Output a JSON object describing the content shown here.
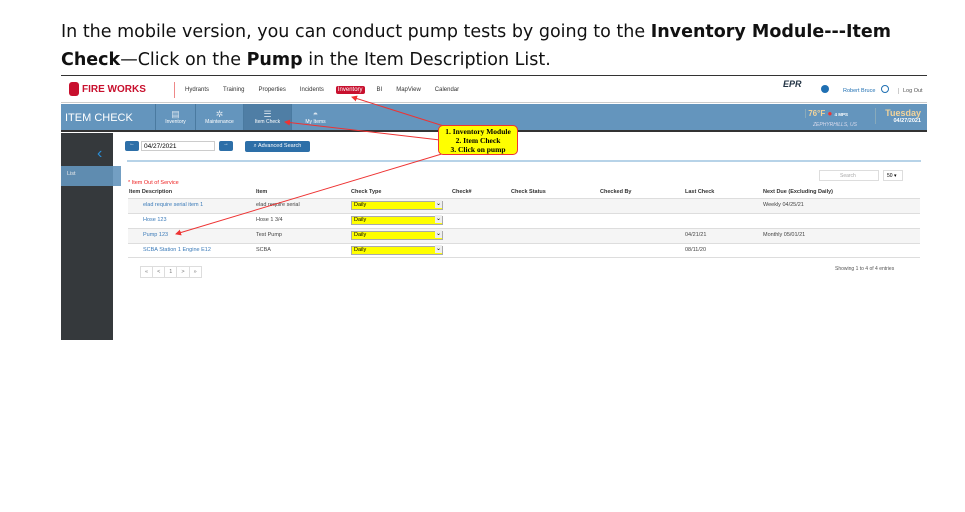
{
  "intro": {
    "t1": "In the mobile version, you can conduct pump tests by going to the ",
    "b1": "Inventory Module---Item Check",
    "t2": "—Click on the ",
    "b2": "Pump",
    "t3": " in the Item Description List."
  },
  "header": {
    "logo": "FIRE WORKS",
    "nav": [
      "Hydrants",
      "Training",
      "Properties",
      "Incidents",
      "Inventory",
      "BI",
      "MapView",
      "Calendar"
    ],
    "active_nav": "Inventory",
    "epr": "EPR",
    "user": "Robert Bruce",
    "logout": "Log Out"
  },
  "bar": {
    "title": "ITEM CHECK",
    "modules": [
      "Inventory",
      "Maintenance",
      "Item Check",
      "My Items"
    ],
    "temp": "76°F",
    "wind": "4 MPS",
    "city": "ZEPHYRHILLS, US",
    "day": "Tuesday",
    "date": "04/27/2021"
  },
  "sidebar": {
    "list": "List"
  },
  "toolbar": {
    "date": "04/27/2021",
    "advanced_search": "Advanced Search",
    "search_placeholder": "Search",
    "per_page": "50"
  },
  "legend": "* Item Out of Service",
  "table": {
    "headers": [
      "Item Description",
      "Item",
      "Check Type",
      "Check#",
      "Check Status",
      "Checked By",
      "Last Check",
      "Next Due (Excluding Daily)"
    ],
    "rows": [
      {
        "desc": "elad require serial item 1",
        "item": "elad require serial",
        "type": "Daily",
        "last": "",
        "next": "Weekly 04/25/21"
      },
      {
        "desc": "Hose 123",
        "item": "Hose 1 3/4",
        "type": "Daily",
        "last": "",
        "next": ""
      },
      {
        "desc": "Pump 123",
        "item": "Test Pump",
        "type": "Daily",
        "last": "04/21/21",
        "next": "Monthly 05/01/21"
      },
      {
        "desc": "SCBA Station 1 Engine E12",
        "item": "SCBA",
        "type": "Daily",
        "last": "08/11/20",
        "next": ""
      }
    ]
  },
  "pager": {
    "first": "«",
    "prev": "<",
    "page": "1",
    "next": ">",
    "last": "»",
    "showing": "Showing 1 to 4 of 4 entries"
  },
  "callout": {
    "l1": "1. Inventory Module",
    "l2": "2. Item Check",
    "l3": "3. Click on pump"
  },
  "colors": {
    "accent": "#6495bd",
    "brand": "#c8102e",
    "highlight": "#ffff00"
  }
}
